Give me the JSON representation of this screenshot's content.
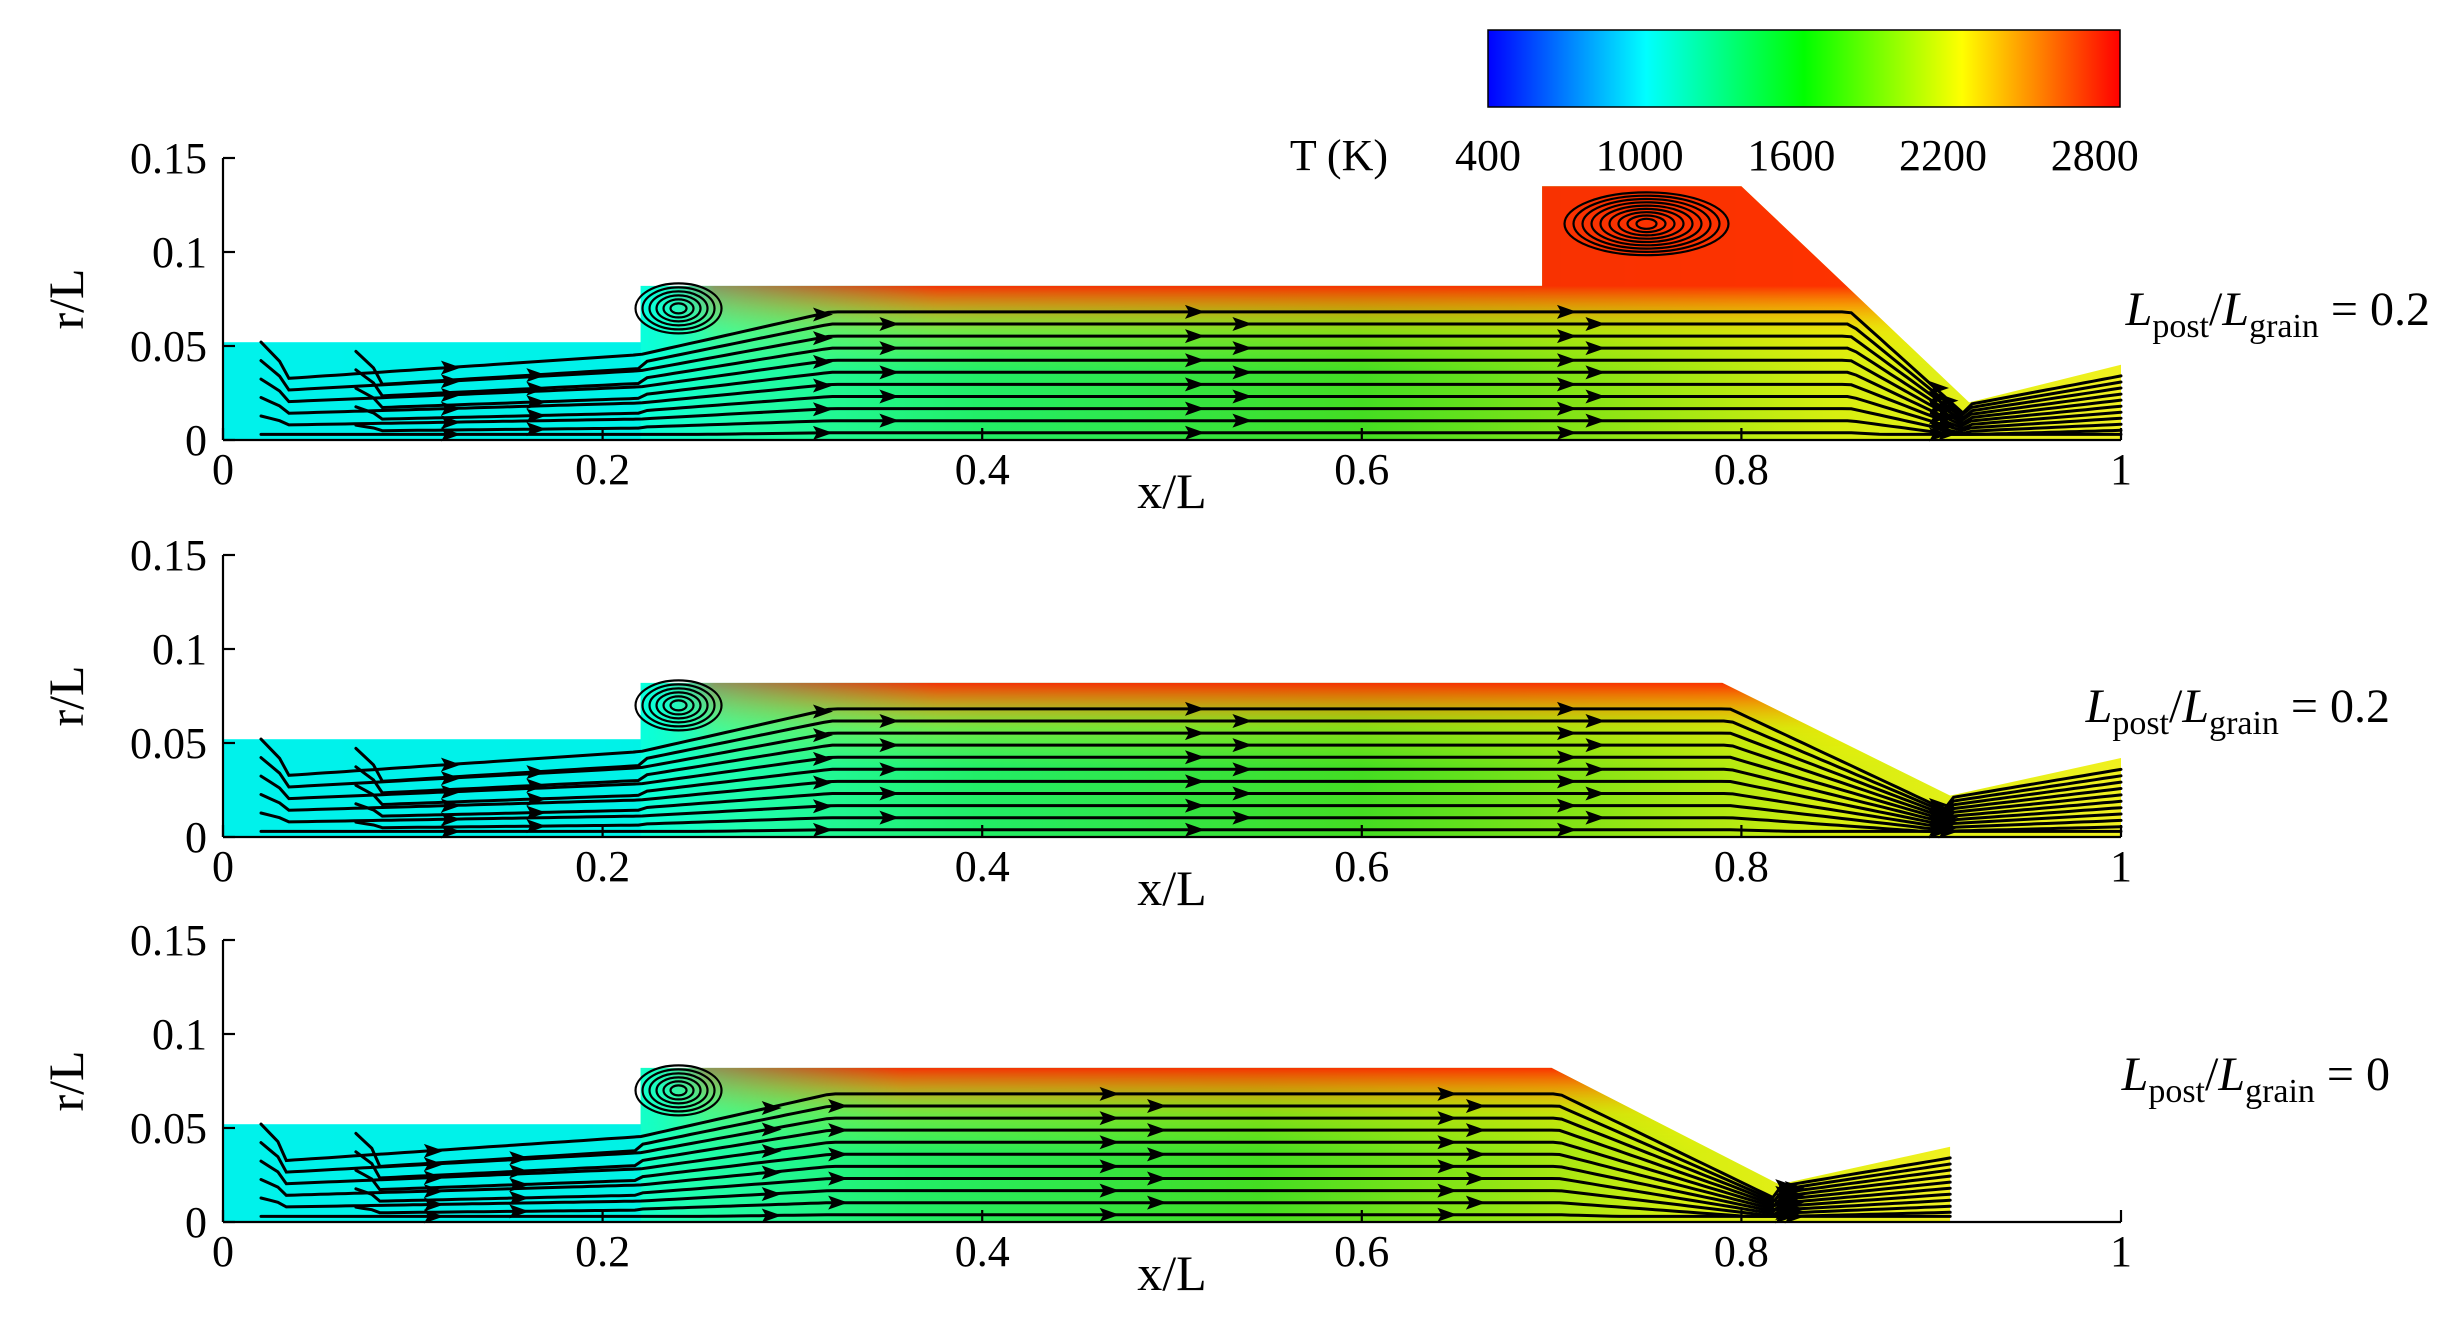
{
  "chart_data": {
    "type": "heatmap",
    "colorbar": {
      "label": "T (K)",
      "range": [
        400,
        2900
      ],
      "ticks": [
        400,
        1000,
        1600,
        2200,
        2800
      ],
      "colormap": [
        "#0000ff",
        "#00ffff",
        "#00ff00",
        "#ffff00",
        "#ff0000"
      ]
    },
    "panels": [
      {
        "xlabel": "x/L",
        "ylabel": "r/L",
        "xlim": [
          0,
          1
        ],
        "ylim": [
          0,
          0.15
        ],
        "xticks": [
          0,
          0.2,
          0.4,
          0.6,
          0.8,
          1
        ],
        "xtick_labels": [
          "0",
          "0.2",
          "0.4",
          "0.6",
          "0.8",
          "1"
        ],
        "yticks": [
          0,
          0.05,
          0.1,
          0.15
        ],
        "ytick_labels": [
          "0",
          "0.05",
          "0.1",
          "0.15"
        ],
        "case": {
          "L": "L",
          "sub1": "post",
          "slash": "/",
          "sub2": "grain",
          "eq": " = ",
          "value": "0.2"
        },
        "wall": [
          [
            0,
            0.052
          ],
          [
            0.22,
            0.052
          ],
          [
            0.22,
            0.082
          ],
          [
            0.695,
            0.082
          ],
          [
            0.695,
            0.135
          ],
          [
            0.8,
            0.135
          ],
          [
            0.92,
            0.02
          ],
          [
            1.0,
            0.04
          ]
        ],
        "has_post_cavity": true
      },
      {
        "xlabel": "x/L",
        "ylabel": "r/L",
        "xlim": [
          0,
          1
        ],
        "ylim": [
          0,
          0.15
        ],
        "xticks": [
          0,
          0.2,
          0.4,
          0.6,
          0.8,
          1
        ],
        "xtick_labels": [
          "0",
          "0.2",
          "0.4",
          "0.6",
          "0.8",
          "1"
        ],
        "yticks": [
          0,
          0.05,
          0.1,
          0.15
        ],
        "ytick_labels": [
          "0",
          "0.05",
          "0.1",
          "0.15"
        ],
        "case": {
          "L": "L",
          "sub1": "post",
          "slash": "/",
          "sub2": "grain",
          "eq": " = ",
          "value": "0.2"
        },
        "wall": [
          [
            0,
            0.052
          ],
          [
            0.22,
            0.052
          ],
          [
            0.22,
            0.082
          ],
          [
            0.79,
            0.082
          ],
          [
            0.91,
            0.022
          ],
          [
            1.0,
            0.042
          ]
        ],
        "has_post_cavity": false
      },
      {
        "xlabel": "x/L",
        "ylabel": "r/L",
        "xlim": [
          0,
          1
        ],
        "ylim": [
          0,
          0.15
        ],
        "xticks": [
          0,
          0.2,
          0.4,
          0.6,
          0.8,
          1
        ],
        "xtick_labels": [
          "0",
          "0.2",
          "0.4",
          "0.6",
          "0.8",
          "1"
        ],
        "yticks": [
          0,
          0.05,
          0.1,
          0.15
        ],
        "ytick_labels": [
          "0",
          "0.05",
          "0.1",
          "0.15"
        ],
        "case": {
          "L": "L",
          "sub1": "post",
          "slash": "/",
          "sub2": "grain",
          "eq": " = ",
          "value": "0"
        },
        "wall": [
          [
            0,
            0.052
          ],
          [
            0.22,
            0.052
          ],
          [
            0.22,
            0.082
          ],
          [
            0.7,
            0.082
          ],
          [
            0.82,
            0.02
          ],
          [
            0.91,
            0.04
          ]
        ],
        "has_post_cavity": false
      }
    ]
  }
}
